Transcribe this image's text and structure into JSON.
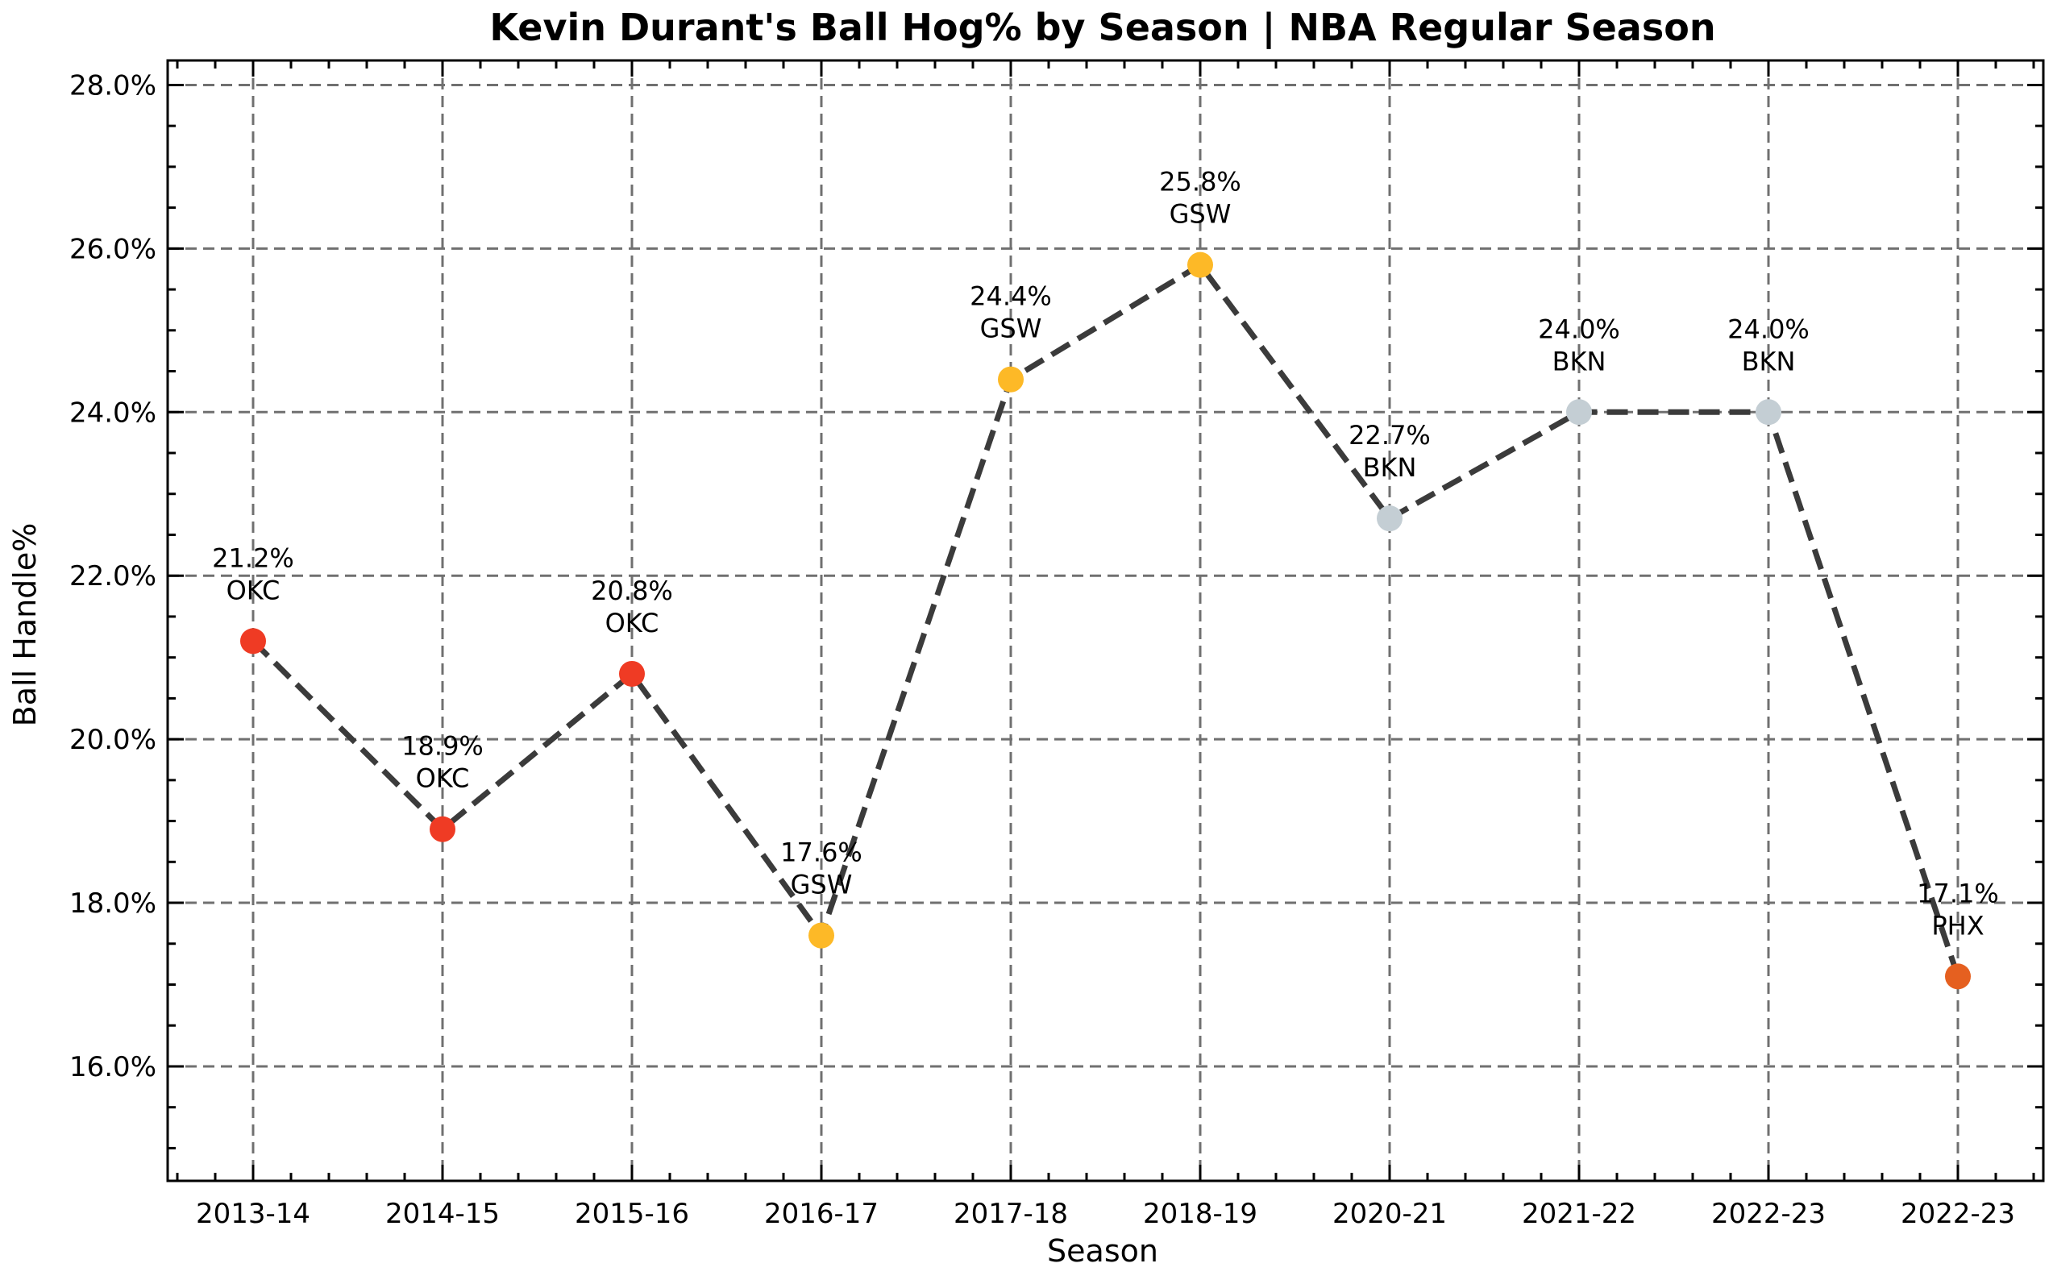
{
  "chart_data": {
    "type": "line",
    "title": "Kevin Durant's Ball Hog% by Season | NBA Regular Season",
    "xlabel": "Season",
    "ylabel": "Ball Handle%",
    "ylim": [
      14.6,
      28.3
    ],
    "grid": true,
    "yticks": [
      16.0,
      18.0,
      20.0,
      22.0,
      24.0,
      26.0,
      28.0
    ],
    "ytick_labels": [
      "16.0%",
      "18.0%",
      "20.0%",
      "22.0%",
      "24.0%",
      "26.0%",
      "28.0%"
    ],
    "categories": [
      "2013-14",
      "2014-15",
      "2015-16",
      "2016-17",
      "2017-18",
      "2018-19",
      "2020-21",
      "2021-22",
      "2022-23",
      "2022-23"
    ],
    "values": [
      21.2,
      18.9,
      20.8,
      17.6,
      24.4,
      25.8,
      22.7,
      24.0,
      24.0,
      17.1
    ],
    "teams": [
      "OKC",
      "OKC",
      "OKC",
      "GSW",
      "GSW",
      "GSW",
      "BKN",
      "BKN",
      "BKN",
      "PHX"
    ],
    "value_labels": [
      "21.2%",
      "18.9%",
      "20.8%",
      "17.6%",
      "24.4%",
      "25.8%",
      "22.7%",
      "24.0%",
      "24.0%",
      "17.1%"
    ],
    "team_colors": {
      "OKC": "#ef3b24",
      "GSW": "#fdb927",
      "BKN": "#c4ced4",
      "PHX": "#e56020"
    },
    "line_color": "#3b3b3b"
  }
}
